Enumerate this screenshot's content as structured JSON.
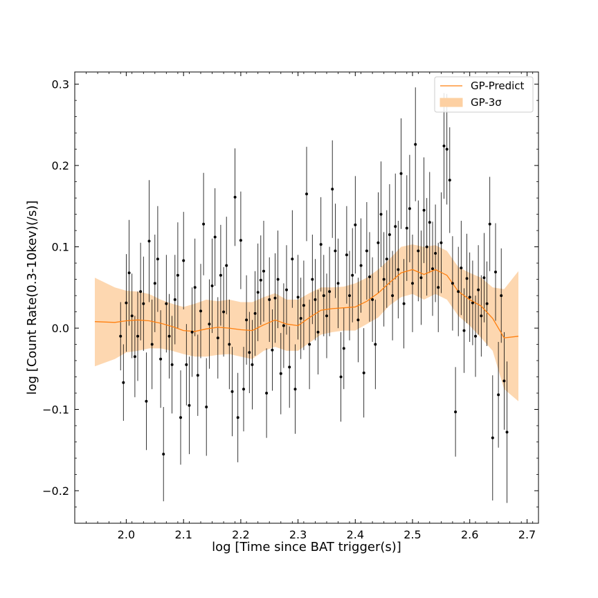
{
  "chart_data": {
    "type": "scatter",
    "title": "",
    "xlabel": "log [Time since BAT trigger(s)]",
    "ylabel": "log [Count Rate(0.3-10kev)(/s)]",
    "xlim": [
      1.91,
      2.72
    ],
    "ylim": [
      -0.24,
      0.315
    ],
    "xticks": [
      2.0,
      2.1,
      2.2,
      2.3,
      2.4,
      2.5,
      2.6,
      2.7
    ],
    "xtick_labels": [
      "2.0",
      "2.1",
      "2.2",
      "2.3",
      "2.4",
      "2.5",
      "2.6",
      "2.7"
    ],
    "yticks": [
      -0.2,
      -0.1,
      0.0,
      0.1,
      0.2,
      0.3
    ],
    "ytick_labels": [
      "−0.2",
      "−0.1",
      "0.0",
      "0.1",
      "0.2",
      "0.3"
    ],
    "grid": false,
    "legend_position": "top-right",
    "colors": {
      "gp_line": "#ff7f0e",
      "gp_band": "#fdd0a2",
      "points": "#000000",
      "errorbars": "#000000"
    },
    "legend": [
      {
        "label": "GP-Predict",
        "kind": "line"
      },
      {
        "label": "GP-3σ",
        "kind": "band"
      }
    ],
    "gp_predict": {
      "name": "GP-Predict",
      "x": [
        1.945,
        1.98,
        2.0,
        2.02,
        2.04,
        2.06,
        2.08,
        2.1,
        2.12,
        2.14,
        2.16,
        2.18,
        2.2,
        2.22,
        2.24,
        2.26,
        2.28,
        2.3,
        2.32,
        2.34,
        2.36,
        2.38,
        2.4,
        2.42,
        2.44,
        2.46,
        2.48,
        2.5,
        2.52,
        2.54,
        2.56,
        2.58,
        2.6,
        2.62,
        2.64,
        2.66,
        2.685
      ],
      "y": [
        0.008,
        0.007,
        0.009,
        0.01,
        0.009,
        0.006,
        0.002,
        -0.003,
        -0.004,
        -0.001,
        0.001,
        0.0,
        -0.002,
        -0.003,
        0.004,
        0.01,
        0.005,
        0.003,
        0.013,
        0.022,
        0.024,
        0.025,
        0.026,
        0.033,
        0.043,
        0.056,
        0.068,
        0.072,
        0.066,
        0.072,
        0.065,
        0.045,
        0.035,
        0.027,
        0.012,
        -0.012,
        -0.01
      ]
    },
    "gp_band": {
      "name": "GP-3σ",
      "x": [
        1.945,
        1.98,
        2.0,
        2.02,
        2.04,
        2.06,
        2.08,
        2.1,
        2.12,
        2.14,
        2.16,
        2.18,
        2.2,
        2.22,
        2.24,
        2.26,
        2.28,
        2.3,
        2.32,
        2.34,
        2.36,
        2.38,
        2.4,
        2.42,
        2.44,
        2.46,
        2.48,
        2.5,
        2.52,
        2.54,
        2.56,
        2.58,
        2.6,
        2.62,
        2.64,
        2.66,
        2.685
      ],
      "upper": [
        0.062,
        0.05,
        0.046,
        0.045,
        0.042,
        0.035,
        0.03,
        0.026,
        0.03,
        0.035,
        0.033,
        0.035,
        0.032,
        0.032,
        0.038,
        0.043,
        0.035,
        0.035,
        0.043,
        0.05,
        0.05,
        0.051,
        0.055,
        0.062,
        0.072,
        0.085,
        0.1,
        0.103,
        0.1,
        0.102,
        0.095,
        0.075,
        0.068,
        0.062,
        0.05,
        0.048,
        0.07
      ],
      "lower": [
        -0.047,
        -0.038,
        -0.03,
        -0.028,
        -0.025,
        -0.025,
        -0.028,
        -0.032,
        -0.035,
        -0.035,
        -0.033,
        -0.032,
        -0.035,
        -0.038,
        -0.028,
        -0.023,
        -0.028,
        -0.028,
        -0.018,
        -0.008,
        -0.005,
        -0.003,
        -0.003,
        0.005,
        0.013,
        0.028,
        0.038,
        0.042,
        0.035,
        0.042,
        0.035,
        0.015,
        0.003,
        -0.012,
        -0.028,
        -0.075,
        -0.09
      ]
    },
    "observations": {
      "x": [
        1.99,
        1.995,
        2.0,
        2.005,
        2.01,
        2.015,
        2.02,
        2.025,
        2.03,
        2.035,
        2.04,
        2.045,
        2.05,
        2.055,
        2.06,
        2.065,
        2.07,
        2.075,
        2.08,
        2.085,
        2.09,
        2.095,
        2.1,
        2.105,
        2.11,
        2.115,
        2.12,
        2.125,
        2.13,
        2.135,
        2.14,
        2.145,
        2.15,
        2.155,
        2.16,
        2.165,
        2.17,
        2.175,
        2.18,
        2.185,
        2.19,
        2.195,
        2.2,
        2.205,
        2.21,
        2.215,
        2.22,
        2.225,
        2.23,
        2.235,
        2.24,
        2.245,
        2.25,
        2.255,
        2.26,
        2.265,
        2.27,
        2.275,
        2.28,
        2.285,
        2.29,
        2.295,
        2.3,
        2.305,
        2.31,
        2.315,
        2.32,
        2.325,
        2.33,
        2.335,
        2.34,
        2.345,
        2.35,
        2.355,
        2.36,
        2.365,
        2.37,
        2.375,
        2.38,
        2.385,
        2.39,
        2.395,
        2.4,
        2.405,
        2.41,
        2.415,
        2.42,
        2.425,
        2.43,
        2.435,
        2.44,
        2.445,
        2.45,
        2.455,
        2.46,
        2.465,
        2.47,
        2.475,
        2.48,
        2.485,
        2.49,
        2.495,
        2.5,
        2.505,
        2.51,
        2.515,
        2.52,
        2.525,
        2.53,
        2.535,
        2.54,
        2.545,
        2.55,
        2.555,
        2.56,
        2.565,
        2.57,
        2.575,
        2.58,
        2.585,
        2.59,
        2.595,
        2.6,
        2.605,
        2.61,
        2.615,
        2.62,
        2.625,
        2.63,
        2.635,
        2.64,
        2.645,
        2.65,
        2.655,
        2.66,
        2.665
      ],
      "y": [
        -0.01,
        -0.067,
        0.031,
        0.068,
        0.015,
        -0.035,
        -0.01,
        0.045,
        0.03,
        -0.09,
        0.107,
        -0.02,
        0.055,
        0.085,
        -0.038,
        -0.155,
        0.03,
        -0.01,
        -0.045,
        0.035,
        0.065,
        -0.11,
        0.083,
        -0.045,
        -0.095,
        -0.005,
        0.05,
        -0.058,
        0.021,
        0.128,
        -0.097,
        0.005,
        0.052,
        0.112,
        -0.012,
        0.065,
        0.02,
        0.077,
        -0.02,
        -0.078,
        0.161,
        -0.11,
        0.108,
        -0.075,
        0.01,
        -0.03,
        -0.045,
        0.018,
        0.044,
        0.059,
        0.07,
        -0.08,
        0.035,
        -0.027,
        0.037,
        0.06,
        -0.056,
        0.003,
        0.047,
        -0.048,
        0.085,
        -0.075,
        0.038,
        0.012,
        0.028,
        0.165,
        -0.02,
        0.06,
        0.035,
        -0.005,
        0.103,
        0.04,
        0.015,
        0.045,
        0.171,
        0.095,
        0.055,
        -0.06,
        -0.025,
        0.09,
        0.04,
        0.065,
        0.127,
        0.01,
        0.077,
        -0.055,
        0.095,
        0.063,
        0.035,
        -0.02,
        0.105,
        0.14,
        0.06,
        0.085,
        0.115,
        0.04,
        0.125,
        0.072,
        0.19,
        0.03,
        0.123,
        0.147,
        0.055,
        0.226,
        0.095,
        0.062,
        0.145,
        0.1,
        0.13,
        0.073,
        0.092,
        0.05,
        0.105,
        0.224,
        0.22,
        0.182,
        0.055,
        -0.103,
        0.045,
        0.074,
        -0.003,
        0.061,
        0.038,
        0.031,
        -0.01,
        0.047,
        0.015,
        0.062,
        0.03,
        0.128,
        -0.135,
        0.069,
        -0.082,
        0.04,
        -0.065,
        -0.128
      ],
      "yerr": [
        0.042,
        0.047,
        0.06,
        0.065,
        0.052,
        0.05,
        0.055,
        0.06,
        0.058,
        0.06,
        0.075,
        0.055,
        0.06,
        0.065,
        0.06,
        0.058,
        0.06,
        0.052,
        0.06,
        0.055,
        0.065,
        0.058,
        0.06,
        0.05,
        0.06,
        0.055,
        0.06,
        0.05,
        0.058,
        0.063,
        0.06,
        0.055,
        0.058,
        0.06,
        0.05,
        0.062,
        0.055,
        0.06,
        0.055,
        0.055,
        0.06,
        0.055,
        0.06,
        0.052,
        0.055,
        0.05,
        0.055,
        0.052,
        0.06,
        0.055,
        0.062,
        0.055,
        0.052,
        0.05,
        0.055,
        0.06,
        0.05,
        0.052,
        0.055,
        0.05,
        0.06,
        0.055,
        0.052,
        0.05,
        0.055,
        0.058,
        0.055,
        0.055,
        0.05,
        0.052,
        0.058,
        0.05,
        0.052,
        0.055,
        0.06,
        0.058,
        0.055,
        0.055,
        0.05,
        0.06,
        0.055,
        0.058,
        0.06,
        0.052,
        0.058,
        0.055,
        0.06,
        0.055,
        0.052,
        0.055,
        0.062,
        0.065,
        0.058,
        0.06,
        0.062,
        0.055,
        0.065,
        0.06,
        0.068,
        0.055,
        0.065,
        0.066,
        0.06,
        0.07,
        0.062,
        0.058,
        0.065,
        0.06,
        0.062,
        0.058,
        0.06,
        0.055,
        0.062,
        0.065,
        0.068,
        0.065,
        0.058,
        0.055,
        0.055,
        0.058,
        0.052,
        0.055,
        0.055,
        0.052,
        0.05,
        0.055,
        0.05,
        0.055,
        0.052,
        0.058,
        0.077,
        0.06,
        0.065,
        0.058,
        0.06,
        0.087
      ]
    }
  }
}
